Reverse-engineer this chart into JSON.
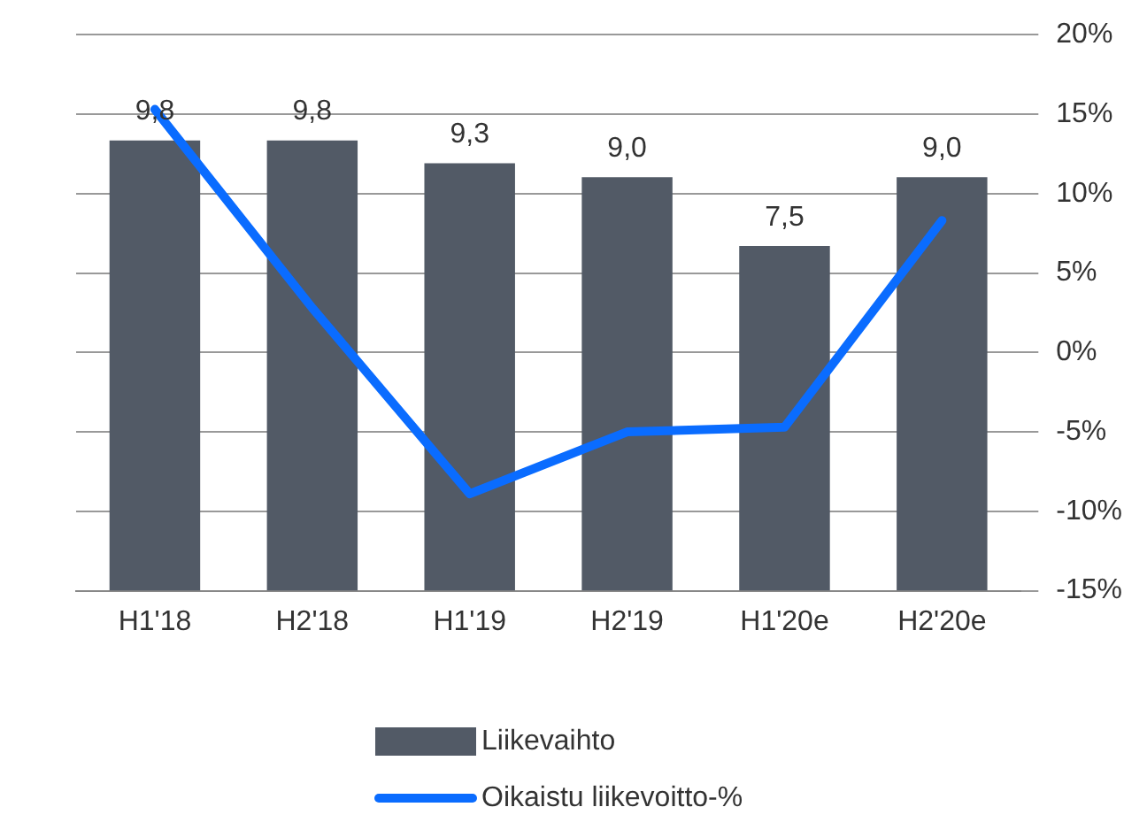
{
  "chart_data": {
    "type": "bar",
    "categories": [
      "H1'18",
      "H2'18",
      "H1'19",
      "H2'19",
      "H1'20e",
      "H2'20e"
    ],
    "series": [
      {
        "name": "Liikevaihto",
        "color": "#525a66",
        "values": [
          9.8,
          9.8,
          9.3,
          9.0,
          7.5,
          9.0
        ],
        "value_labels": [
          "9,8",
          "9,8",
          "9,3",
          "9,0",
          "7,5",
          "9,0"
        ]
      },
      {
        "name": "Oikaistu liikevoitto-%",
        "type": "line",
        "axis": "y2",
        "color": "#0a6cff",
        "values": [
          15.3,
          2.8,
          -8.9,
          -5.0,
          -4.7,
          8.3
        ]
      }
    ],
    "ylim": [
      0,
      12.1
    ],
    "y2lim": [
      -15,
      20
    ],
    "y2ticks": [
      {
        "value": -15,
        "label": "-15%"
      },
      {
        "value": -10,
        "label": "-10%"
      },
      {
        "value": -5,
        "label": "-5%"
      },
      {
        "value": 0,
        "label": "0%"
      },
      {
        "value": 5,
        "label": "5%"
      },
      {
        "value": 10,
        "label": "10%"
      },
      {
        "value": 15,
        "label": "15%"
      },
      {
        "value": 20,
        "label": "20%"
      }
    ],
    "grid": "y",
    "legend": "bottom",
    "marker": "none",
    "line_style": "solid"
  }
}
